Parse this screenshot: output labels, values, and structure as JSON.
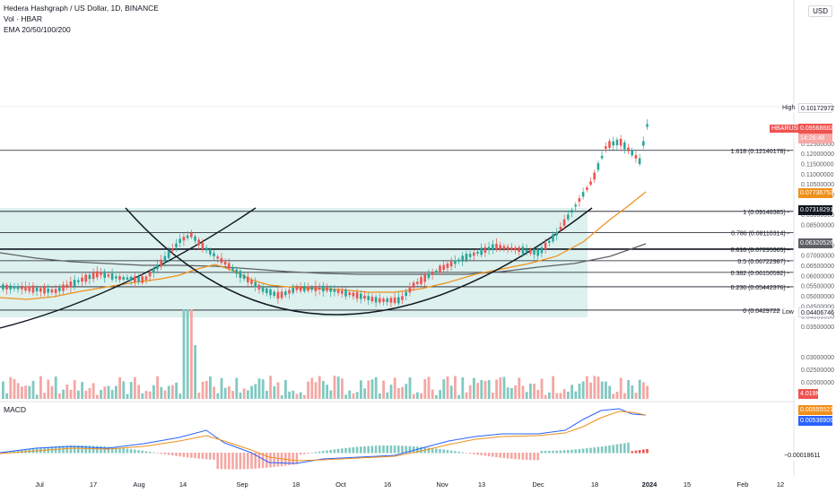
{
  "header": {
    "title": "Hedera Hashgraph / US Dollar, 1D, BINANCE",
    "vol_label": "Vol · HBAR",
    "ema_label": "EMA 20/50/100/200",
    "macd_label": "MACD",
    "currency_button": "USD"
  },
  "colors": {
    "up": "#26a69a",
    "down": "#ef5350",
    "ema_orange": "#f0901a",
    "ema_gray": "#5d6066",
    "zone_fill": "#d9efec",
    "macd_blue": "#2962ff"
  },
  "price_axis": {
    "ticks": [
      "0.12500000",
      "0.12000000",
      "0.11500000",
      "0.11000000",
      "0.10500000",
      "0.10000000",
      "0.09000000",
      "0.08500000",
      "0.07500000",
      "0.07000000",
      "0.06500000",
      "0.06000000",
      "0.05500000",
      "0.05000000",
      "0.04500000",
      "0.04000000",
      "0.03500000",
      "0.03000000",
      "0.02500000",
      "0.02000000"
    ]
  },
  "fib_levels": [
    {
      "label": "1.618 (0.12146178)",
      "value": 0.12146178
    },
    {
      "label": "1 (0.09148385)",
      "value": 0.09148385
    },
    {
      "label": "0.786 (0.08110314)",
      "value": 0.08110314
    },
    {
      "label": "0.618 (0.07295365)",
      "value": 0.07295365
    },
    {
      "label": "0.5 (0.06722987)",
      "value": 0.06722987
    },
    {
      "label": "0.382 (0.06150592)",
      "value": 0.06150592
    },
    {
      "label": "0.236 (0.05442376)",
      "value": 0.05442376
    },
    {
      "label": "0 (0.04297228)",
      "value": 0.04297228
    }
  ],
  "markers": [
    {
      "label": "High",
      "value_label": "0.10172972",
      "value": 0.10172972,
      "color": "#ffffff",
      "text_color": "#131722"
    },
    {
      "label": "HBARUSD",
      "value_label": "0.09568882",
      "sub": "14:26:48",
      "value": 0.09568882,
      "color": "#ef5350"
    },
    {
      "label": "",
      "value_label": "0.07736753",
      "value": 0.07736753,
      "color": "#f0901a"
    },
    {
      "label": "",
      "value_label": "0.07318291",
      "value": 0.07318291,
      "color": "#131722"
    },
    {
      "label": "",
      "value_label": "0.06320526",
      "value": 0.06320526,
      "color": "#5d6066"
    },
    {
      "label": "Low",
      "value_label": "0.04406746",
      "value": 0.04406746,
      "color": "#ffffff",
      "text_color": "#131722"
    }
  ],
  "volume": {
    "last_label": "4.019M"
  },
  "macd": {
    "values": [
      "0.00555521",
      "0.00536909",
      "−0.00018611"
    ],
    "colors": [
      "#f0901a",
      "#2962ff",
      "#ffffff"
    ]
  },
  "time_axis": [
    "Jul",
    "17",
    "Aug",
    "14",
    "Sep",
    "18",
    "Oct",
    "16",
    "Nov",
    "13",
    "Dec",
    "18",
    "2024",
    "15",
    "Feb",
    "12"
  ],
  "chart_data": {
    "type": "candlestick",
    "symbol": "HBARUSD",
    "ylim": [
      0.035,
      0.128
    ],
    "annotations": [
      "Cup and handle pattern",
      "Fibonacci retracement levels"
    ]
  }
}
